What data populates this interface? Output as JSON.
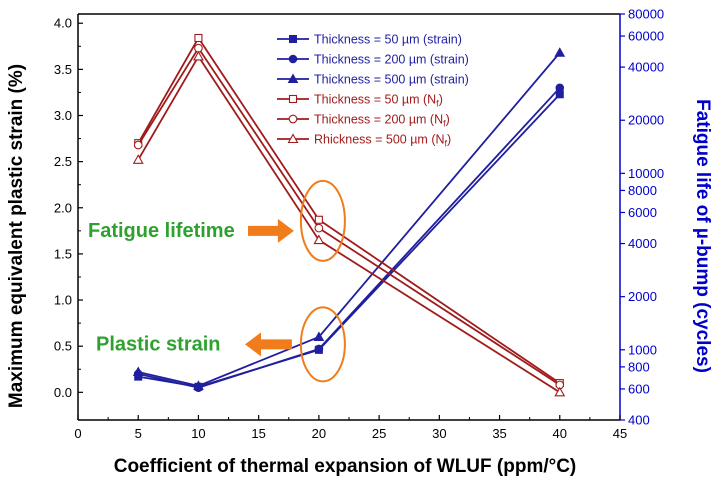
{
  "chart_data": {
    "type": "line",
    "xlabel": "Coefficient of thermal expansion of WLUF (ppm/°C)",
    "ylabel": "Maximum equivalent plastic strain (%)",
    "y2label": "Fatigue life of µ-bump (cycles)",
    "xlim": [
      0,
      45
    ],
    "ylim": [
      -0.3,
      4.1
    ],
    "y2lim": [
      400,
      80000
    ],
    "y2scale": "log",
    "xticks": [
      "0",
      "5",
      "10",
      "15",
      "20",
      "25",
      "30",
      "35",
      "40",
      "45"
    ],
    "yticks": [
      "0.0",
      "0.5",
      "1.0",
      "1.5",
      "2.0",
      "2.5",
      "3.0",
      "3.5",
      "4.0"
    ],
    "y2ticks": [
      "400",
      "600",
      "800",
      "1000",
      "2000",
      "4000",
      "6000",
      "8000",
      "10000",
      "20000",
      "40000",
      "60000",
      "80000"
    ],
    "legend_position": "top-right",
    "x": [
      5,
      10,
      20,
      40
    ],
    "series": [
      {
        "name": "Thickness = 50 µm (strain)",
        "axis": "left",
        "color": "#1f1fa0",
        "marker": "square-filled",
        "values": [
          0.17,
          0.06,
          0.46,
          3.23
        ]
      },
      {
        "name": "Thickness = 200 µm (strain)",
        "axis": "left",
        "color": "#1f1fa0",
        "marker": "circle-filled",
        "values": [
          0.2,
          0.05,
          0.47,
          3.3
        ]
      },
      {
        "name": "Thickness = 500 µm (strain)",
        "axis": "left",
        "color": "#1f1fa0",
        "marker": "triangle-filled",
        "values": [
          0.22,
          0.07,
          0.6,
          3.68
        ]
      },
      {
        "name": "Thickness = 50 µm (Nf)",
        "axis": "right",
        "color": "#a01c1c",
        "marker": "square-open",
        "values": [
          2.7,
          3.84,
          1.87,
          0.1
        ]
      },
      {
        "name": "Thickness = 200 µm (Nf)",
        "axis": "right",
        "color": "#a01c1c",
        "marker": "circle-open",
        "values": [
          2.68,
          3.73,
          1.78,
          0.08
        ]
      },
      {
        "name": "Rhickness = 500 µm (Nf)",
        "axis": "right",
        "color": "#a01c1c",
        "marker": "triangle-open",
        "values": [
          2.52,
          3.64,
          1.65,
          0.0
        ]
      }
    ],
    "legend": [
      {
        "prefix": "Thickness = 50 µm (strain)",
        "sub": ""
      },
      {
        "prefix": "Thickness = 200 µm (strain)",
        "sub": ""
      },
      {
        "prefix": "Thickness = 500 µm (strain)",
        "sub": ""
      },
      {
        "prefix": "Thickness = 50 µm (N",
        "sub": "f",
        "suffix": ")"
      },
      {
        "prefix": "Thickness = 200 µm (N",
        "sub": "f",
        "suffix": ")"
      },
      {
        "prefix": "Rhickness = 500 µm (N",
        "sub": "f",
        "suffix": ")"
      }
    ],
    "annotations": [
      {
        "text": "Fatigue lifetime",
        "target_x": 20,
        "target_y": 1.75
      },
      {
        "text": "Plastic strain",
        "target_x": 20,
        "target_y": 0.52
      }
    ]
  }
}
